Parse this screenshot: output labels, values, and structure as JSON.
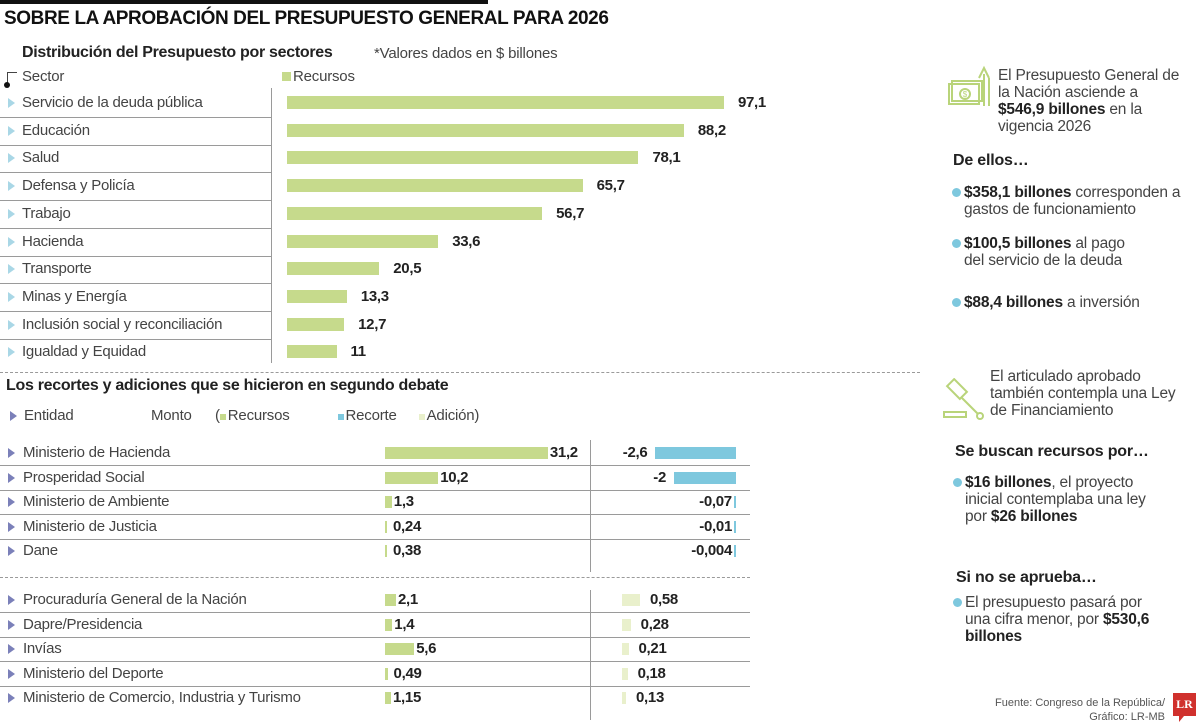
{
  "title": "SOBRE LA APROBACIÓN DEL PRESUPUESTO GENERAL PARA 2026",
  "colors": {
    "recursos": "#c6da8c",
    "recorte": "#7ec8de",
    "adicion": "#e9f0cc",
    "accent_dot": "#7ec8de",
    "logo": "#d0312d"
  },
  "chart_data": [
    {
      "type": "bar",
      "orientation": "horizontal",
      "title": "Distribución del Presupuesto por sectores",
      "note": "*Valores dados en $ billones",
      "category_header": "Sector",
      "legend": [
        "Recursos"
      ],
      "categories": [
        "Servicio de la deuda pública",
        "Educación",
        "Salud",
        "Defensa y Policía",
        "Trabajo",
        "Hacienda",
        "Transporte",
        "Minas y Energía",
        "Inclusión social y reconciliación",
        "Igualdad y Equidad"
      ],
      "series": [
        {
          "name": "Recursos",
          "values": [
            97.1,
            88.2,
            78.1,
            65.7,
            56.7,
            33.6,
            20.5,
            13.3,
            12.7,
            11
          ],
          "labels": [
            "97,1",
            "88,2",
            "78,1",
            "65,7",
            "56,7",
            "33,6",
            "20,5",
            "13,3",
            "12,7",
            "11"
          ]
        }
      ]
    },
    {
      "type": "bar",
      "orientation": "horizontal",
      "title": "Los recortes y adiciones que se hicieron en segundo debate",
      "category_header": "Entidad",
      "value_header": "Monto",
      "legend_open": "(",
      "legend_close": ")",
      "legend": [
        "Recursos",
        "Recorte",
        "Adición"
      ],
      "groups": [
        {
          "categories": [
            "Ministerio de Hacienda",
            "Prosperidad Social",
            "Ministerio de Ambiente",
            "Ministerio de Justicia",
            "Dane"
          ],
          "recursos": [
            31.2,
            10.2,
            1.3,
            0.24,
            0.38
          ],
          "recursos_labels": [
            "31,2",
            "10,2",
            "1,3",
            "0,24",
            "0,38"
          ],
          "recorte": [
            -2.6,
            -2,
            -0.07,
            -0.01,
            -0.004
          ],
          "recorte_labels": [
            "-2,6",
            "-2",
            "-0,07",
            "-0,01",
            "-0,004"
          ]
        },
        {
          "categories": [
            "Procuraduría General de la Nación",
            "Dapre/Presidencia",
            "Invías",
            "Ministerio del Deporte",
            "Ministerio de Comercio, Industria y Turismo"
          ],
          "recursos": [
            2.1,
            1.4,
            5.6,
            0.49,
            1.15
          ],
          "recursos_labels": [
            "2,1",
            "1,4",
            "5,6",
            "0,49",
            "1,15"
          ],
          "adicion": [
            0.58,
            0.28,
            0.21,
            0.18,
            0.13
          ],
          "adicion_labels": [
            "0,58",
            "0,28",
            "0,21",
            "0,18",
            "0,13"
          ]
        }
      ]
    }
  ],
  "sidebar": {
    "intro": {
      "icon": "money-arrow-up-icon",
      "pre": "El Presupuesto General de la Nación asciende a ",
      "bold": "$546,9 billones",
      "post": " en la vigencia 2026"
    },
    "de_ellos": "De ellos…",
    "items": [
      {
        "bold": "$358,1 billones",
        "text": " corresponden a gastos de funcionamiento"
      },
      {
        "bold": "$100,5 billones",
        "text": " al pago del servicio de la deuda"
      },
      {
        "bold": "$88,4 billones",
        "text": " a inversión"
      }
    ],
    "ley": {
      "icon": "gavel-icon",
      "text": "El articulado aprobado también contempla una Ley de Financiamiento"
    },
    "buscan_title": "Se buscan recursos por…",
    "buscan": {
      "bold1": "$16 billones",
      "mid": ", el proyecto inicial contemplaba una ley por ",
      "bold2": "$26 billones"
    },
    "no_aprueba_title": "Si no se aprueba…",
    "no_aprueba": {
      "text": "El presupuesto pasará por una cifra menor, por ",
      "bold": "$530,6 billones"
    }
  },
  "footer": {
    "source": "Fuente: Congreso de la República/",
    "graphic": "Gráfico: LR-MB",
    "logo": "LR"
  }
}
